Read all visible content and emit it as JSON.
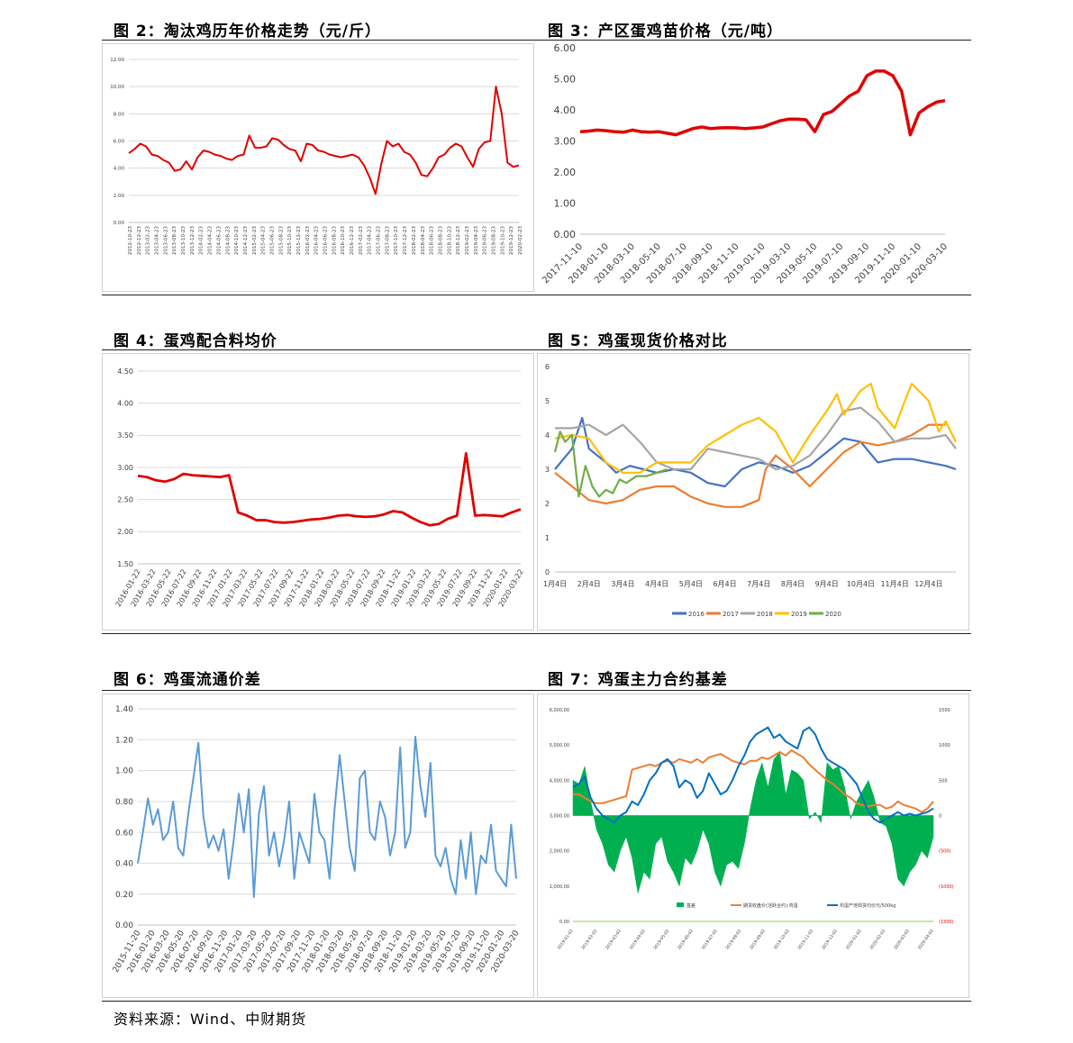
{
  "titles": {
    "fig2": "图 2：淘汰鸡历年价格走势（元/斤）",
    "fig3": "图 3：产区蛋鸡苗价格（元/吨）",
    "fig4": "图 4：蛋鸡配合料均价",
    "fig5": "图 5：鸡蛋现货价格对比",
    "fig6": "图 6：鸡蛋流通价差",
    "fig7": "图 7：鸡蛋主力合约基差"
  },
  "source": "资料来源：Wind、中财期货",
  "chart_data": [
    {
      "id": "fig2",
      "type": "line",
      "color": "#e00000",
      "ylim": [
        0,
        12
      ],
      "yticks": [
        "0.00",
        "2.00",
        "4.00",
        "6.00",
        "8.00",
        "10.00",
        "12.00"
      ],
      "xticks": [
        "2012-10-23",
        "2012-12-23",
        "2013-02-23",
        "2013-04-23",
        "2013-06-23",
        "2013-08-23",
        "2013-10-23",
        "2013-12-23",
        "2014-02-23",
        "2014-04-23",
        "2014-06-23",
        "2014-08-23",
        "2014-10-23",
        "2014-12-23",
        "2015-02-23",
        "2015-04-23",
        "2015-06-23",
        "2015-08-23",
        "2015-10-23",
        "2015-12-23",
        "2016-02-23",
        "2016-04-23",
        "2016-06-23",
        "2016-08-23",
        "2016-10-23",
        "2016-12-23",
        "2017-02-23",
        "2017-04-23",
        "2017-06-23",
        "2017-08-23",
        "2017-10-23",
        "2017-12-23",
        "2018-02-23",
        "2018-04-23",
        "2018-06-23",
        "2018-08-23",
        "2018-10-23",
        "2018-12-23",
        "2019-02-23",
        "2019-04-23",
        "2019-06-23",
        "2019-08-23",
        "2019-10-23",
        "2019-12-23",
        "2020-02-23"
      ],
      "series": [
        {
          "values": [
            5.1,
            5.4,
            5.8,
            5.6,
            5.0,
            4.9,
            4.6,
            4.4,
            3.8,
            3.9,
            4.5,
            3.9,
            4.8,
            5.3,
            5.2,
            5.0,
            4.9,
            4.7,
            4.6,
            4.9,
            5.0,
            6.4,
            5.5,
            5.5,
            5.6,
            6.2,
            6.1,
            5.7,
            5.4,
            5.3,
            4.5,
            5.8,
            5.7,
            5.3,
            5.2,
            5.0,
            4.9,
            4.8,
            4.9,
            5.0,
            4.8,
            4.2,
            3.3,
            2.1,
            4.3,
            6.0,
            5.6,
            5.8,
            5.2,
            5.0,
            4.4,
            3.5,
            3.4,
            4.0,
            4.8,
            5.0,
            5.5,
            5.8,
            5.6,
            4.8,
            4.1,
            5.4,
            5.9,
            6.0,
            10.0,
            8.0,
            4.4,
            4.1,
            4.2
          ]
        }
      ]
    },
    {
      "id": "fig3",
      "type": "line",
      "color": "#e00000",
      "ylim": [
        0,
        6
      ],
      "yticks": [
        "0.00",
        "1.00",
        "2.00",
        "3.00",
        "4.00",
        "5.00",
        "6.00"
      ],
      "xticks": [
        "2017-11-10",
        "2018-01-10",
        "2018-03-10",
        "2018-05-10",
        "2018-07-10",
        "2018-09-10",
        "2018-11-10",
        "2019-01-10",
        "2019-03-10",
        "2019-05-10",
        "2019-07-10",
        "2019-09-10",
        "2019-11-10",
        "2020-01-10",
        "2020-03-10"
      ],
      "series": [
        {
          "values": [
            3.3,
            3.32,
            3.35,
            3.33,
            3.3,
            3.28,
            3.35,
            3.3,
            3.28,
            3.3,
            3.25,
            3.2,
            3.3,
            3.4,
            3.45,
            3.4,
            3.42,
            3.43,
            3.42,
            3.4,
            3.42,
            3.45,
            3.55,
            3.65,
            3.7,
            3.7,
            3.68,
            3.3,
            3.85,
            3.95,
            4.2,
            4.45,
            4.6,
            5.1,
            5.25,
            5.25,
            5.1,
            4.6,
            3.2,
            3.9,
            4.1,
            4.25,
            4.3
          ]
        }
      ]
    },
    {
      "id": "fig4",
      "type": "line",
      "color": "#e00000",
      "ylim": [
        1.5,
        4.5
      ],
      "yticks": [
        "1.50",
        "2.00",
        "2.50",
        "3.00",
        "3.50",
        "4.00",
        "4.50"
      ],
      "xticks": [
        "2016-01-22",
        "2016-03-22",
        "2016-05-22",
        "2016-07-22",
        "2016-09-22",
        "2016-11-22",
        "2017-01-22",
        "2017-03-22",
        "2017-05-22",
        "2017-07-22",
        "2017-09-22",
        "2017-11-22",
        "2018-01-22",
        "2018-03-22",
        "2018-05-22",
        "2018-07-22",
        "2018-09-22",
        "2018-11-22",
        "2019-01-22",
        "2019-03-22",
        "2019-05-22",
        "2019-07-22",
        "2019-09-22",
        "2019-11-22",
        "2020-01-22",
        "2020-03-22"
      ],
      "series": [
        {
          "values": [
            2.87,
            2.85,
            2.8,
            2.78,
            2.82,
            2.9,
            2.88,
            2.87,
            2.86,
            2.85,
            2.88,
            2.3,
            2.25,
            2.18,
            2.18,
            2.15,
            2.14,
            2.15,
            2.17,
            2.19,
            2.2,
            2.22,
            2.25,
            2.26,
            2.24,
            2.23,
            2.24,
            2.27,
            2.32,
            2.3,
            2.22,
            2.15,
            2.1,
            2.12,
            2.2,
            2.25,
            3.22,
            2.25,
            2.26,
            2.25,
            2.24,
            2.3,
            2.35
          ]
        }
      ]
    },
    {
      "id": "fig5",
      "type": "line",
      "ylim": [
        0,
        6
      ],
      "yticks": [
        "0",
        "1",
        "2",
        "3",
        "4",
        "5",
        "6"
      ],
      "xticks": [
        "1月4日",
        "2月4日",
        "3月4日",
        "4月4日",
        "5月4日",
        "6月4日",
        "7月4日",
        "8月4日",
        "9月4日",
        "10月4日",
        "11月4日",
        "12月4日"
      ],
      "xmax": 11.8,
      "legend": [
        "2016",
        "2017",
        "2018",
        "2019",
        "2020"
      ],
      "series": [
        {
          "name": "2016",
          "color": "#4472c4",
          "x": [
            0,
            0.5,
            0.8,
            1.0,
            1.5,
            1.8,
            2.2,
            2.6,
            3.0,
            3.5,
            4.0,
            4.5,
            5.0,
            5.5,
            6.0,
            6.5,
            7.0,
            7.5,
            8.0,
            8.5,
            9.0,
            9.5,
            10.0,
            10.5,
            11.0,
            11.5,
            11.8
          ],
          "y": [
            3.0,
            3.6,
            4.5,
            3.6,
            3.2,
            2.9,
            3.1,
            3.0,
            2.9,
            3.0,
            2.9,
            2.6,
            2.5,
            3.0,
            3.2,
            3.1,
            2.9,
            3.1,
            3.5,
            3.9,
            3.8,
            3.2,
            3.3,
            3.3,
            3.2,
            3.1,
            3.0
          ]
        },
        {
          "name": "2017",
          "color": "#ed7d31",
          "x": [
            0,
            0.5,
            1.0,
            1.5,
            2.0,
            2.5,
            3.0,
            3.5,
            4.0,
            4.5,
            5.0,
            5.5,
            6.0,
            6.2,
            6.5,
            7.0,
            7.5,
            8.0,
            8.5,
            9.0,
            9.5,
            10.0,
            10.5,
            11.0,
            11.5
          ],
          "y": [
            2.9,
            2.5,
            2.1,
            2.0,
            2.1,
            2.4,
            2.5,
            2.5,
            2.2,
            2.0,
            1.9,
            1.9,
            2.1,
            3.0,
            3.4,
            3.0,
            2.5,
            3.0,
            3.5,
            3.8,
            3.7,
            3.8,
            4.0,
            4.3,
            4.3
          ]
        },
        {
          "name": "2018",
          "color": "#a5a5a5",
          "x": [
            0,
            0.5,
            1.0,
            1.5,
            2.0,
            2.5,
            3.0,
            3.5,
            4.0,
            4.5,
            5.0,
            5.5,
            6.0,
            6.5,
            7.0,
            7.5,
            8.0,
            8.5,
            9.0,
            9.5,
            10.0,
            10.5,
            11.0,
            11.5,
            11.8
          ],
          "y": [
            4.2,
            4.2,
            4.3,
            4.0,
            4.3,
            3.8,
            3.2,
            3.0,
            3.0,
            3.6,
            3.5,
            3.4,
            3.3,
            3.0,
            3.1,
            3.4,
            4.0,
            4.7,
            4.8,
            4.4,
            3.8,
            3.9,
            3.9,
            4.0,
            3.6
          ]
        },
        {
          "name": "2019",
          "color": "#ffc000",
          "x": [
            0,
            0.5,
            1.0,
            1.5,
            2.0,
            2.5,
            3.0,
            3.5,
            4.0,
            4.3,
            4.5,
            5.0,
            5.5,
            6.0,
            6.5,
            7.0,
            7.5,
            8.0,
            8.3,
            8.5,
            9.0,
            9.3,
            9.5,
            10.0,
            10.3,
            10.5,
            11.0,
            11.3,
            11.5,
            11.8
          ],
          "y": [
            3.9,
            4.0,
            3.9,
            3.2,
            2.9,
            2.9,
            3.2,
            3.2,
            3.2,
            3.5,
            3.7,
            4.0,
            4.3,
            4.5,
            4.1,
            3.2,
            4.0,
            4.7,
            5.2,
            4.6,
            5.3,
            5.5,
            4.8,
            4.2,
            5.0,
            5.5,
            5.0,
            4.1,
            4.4,
            3.8
          ]
        },
        {
          "name": "2020",
          "color": "#70ad47",
          "x": [
            0,
            0.15,
            0.3,
            0.5,
            0.7,
            0.9,
            1.1,
            1.3,
            1.5,
            1.7,
            1.9,
            2.1,
            2.4,
            2.7,
            3.0,
            3.3
          ],
          "y": [
            3.5,
            4.1,
            3.8,
            4.0,
            2.2,
            3.1,
            2.5,
            2.2,
            2.4,
            2.3,
            2.7,
            2.6,
            2.8,
            2.8,
            2.9,
            3.0
          ]
        }
      ]
    },
    {
      "id": "fig6",
      "type": "line",
      "color": "#5b9bd5",
      "ylim": [
        0,
        1.4
      ],
      "yticks": [
        "0.00",
        "0.20",
        "0.40",
        "0.60",
        "0.80",
        "1.00",
        "1.20",
        "1.40"
      ],
      "xticks": [
        "2015-11-20",
        "2016-01-20",
        "2016-03-20",
        "2016-05-20",
        "2016-07-20",
        "2016-09-20",
        "2016-11-20",
        "2017-01-20",
        "2017-03-20",
        "2017-05-20",
        "2017-07-20",
        "2017-09-20",
        "2017-11-20",
        "2018-01-20",
        "2018-03-20",
        "2018-05-20",
        "2018-07-20",
        "2018-09-20",
        "2018-11-20",
        "2019-01-20",
        "2019-03-20",
        "2019-05-20",
        "2019-07-20",
        "2019-09-20",
        "2019-11-20",
        "2020-01-20",
        "2020-03-20"
      ],
      "series": [
        {
          "values": [
            0.4,
            0.6,
            0.82,
            0.65,
            0.75,
            0.55,
            0.6,
            0.8,
            0.5,
            0.45,
            0.72,
            0.95,
            1.18,
            0.7,
            0.5,
            0.58,
            0.48,
            0.62,
            0.3,
            0.55,
            0.85,
            0.6,
            0.88,
            0.18,
            0.72,
            0.9,
            0.45,
            0.6,
            0.38,
            0.55,
            0.8,
            0.3,
            0.6,
            0.5,
            0.4,
            0.85,
            0.6,
            0.55,
            0.3,
            0.75,
            1.1,
            0.8,
            0.5,
            0.35,
            0.95,
            1.0,
            0.6,
            0.55,
            0.8,
            0.7,
            0.45,
            0.6,
            1.15,
            0.5,
            0.6,
            1.22,
            0.9,
            0.7,
            1.05,
            0.45,
            0.38,
            0.5,
            0.3,
            0.2,
            0.55,
            0.3,
            0.6,
            0.2,
            0.45,
            0.4,
            0.65,
            0.35,
            0.3,
            0.25,
            0.65,
            0.3
          ]
        }
      ]
    },
    {
      "id": "fig7",
      "type": "area",
      "yticks_left": [
        "0.00",
        "1,000.00",
        "2,000.00",
        "3,000.00",
        "4,000.00",
        "5,000.00",
        "6,000.00"
      ],
      "yticks_right": [
        "1500",
        "1000",
        "500",
        "0",
        "(500)",
        "(1000)",
        "(1500)"
      ],
      "xticks": [
        "2019-01-02",
        "2019-02-02",
        "2019-03-02",
        "2019-04-02",
        "2019-05-02",
        "2019-06-02",
        "2019-07-02",
        "2019-08-02",
        "2019-09-02",
        "2019-10-02",
        "2019-11-02",
        "2019-12-02",
        "2020-01-02",
        "2020-02-02",
        "2020-03-02",
        "2020-04-02"
      ],
      "legend": [
        "基差",
        "期货收盘价(活跃合约):鸡蛋",
        "鸡蛋产地现货均价元/500kg"
      ],
      "series": [
        {
          "name": "基差",
          "color": "#00b050",
          "values": [
            500,
            450,
            700,
            200,
            -200,
            -400,
            -700,
            -800,
            -500,
            -300,
            -600,
            -1100,
            -800,
            -900,
            -400,
            -300,
            -650,
            -800,
            -1000,
            -600,
            -700,
            -500,
            -200,
            -400,
            -800,
            -1000,
            -700,
            -650,
            -750,
            -400,
            100,
            500,
            750,
            400,
            800,
            900,
            300,
            650,
            600,
            500,
            -50,
            50,
            -100,
            750,
            650,
            700,
            400,
            -50,
            200,
            350,
            500,
            250,
            -100,
            -150,
            -400,
            -900,
            -1000,
            -800,
            -700,
            -500,
            -600,
            -300
          ]
        },
        {
          "name": "期货收盘价(活跃合约):鸡蛋",
          "color": "#ed7d31",
          "values": [
            3600,
            3600,
            3500,
            3400,
            3350,
            3350,
            3400,
            3450,
            3500,
            3550,
            4300,
            4350,
            4400,
            4450,
            4400,
            4500,
            4550,
            4500,
            4600,
            4550,
            4500,
            4600,
            4500,
            4650,
            4700,
            4750,
            4650,
            4550,
            4500,
            4450,
            4550,
            4550,
            4650,
            4600,
            4700,
            4800,
            4700,
            4850,
            4750,
            4650,
            4450,
            4300,
            4150,
            4000,
            3900,
            3750,
            3600,
            3500,
            3350,
            3300,
            3250,
            3300,
            3300,
            3200,
            3250,
            3400,
            3300,
            3250,
            3200,
            3100,
            3200,
            3400
          ]
        },
        {
          "name": "鸡蛋产地现货均价元/500kg",
          "color": "#0070c0",
          "values": [
            3800,
            3900,
            4100,
            3500,
            3200,
            3000,
            2900,
            2800,
            3000,
            3100,
            3400,
            3300,
            3600,
            4000,
            4200,
            4500,
            4600,
            4400,
            3800,
            4000,
            3900,
            3500,
            3700,
            4200,
            3900,
            3600,
            3700,
            4000,
            4400,
            4700,
            5100,
            5300,
            5400,
            5500,
            5200,
            5300,
            5100,
            5000,
            4900,
            5400,
            5500,
            5300,
            4900,
            4600,
            4500,
            4400,
            4300,
            4100,
            3900,
            3500,
            3100,
            2900,
            2800,
            2900,
            3000,
            3100,
            3000,
            3050,
            3000,
            3050,
            3100,
            3200
          ]
        }
      ]
    }
  ]
}
